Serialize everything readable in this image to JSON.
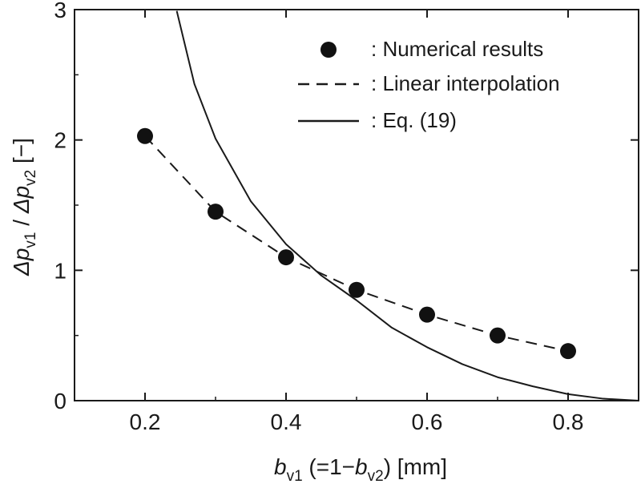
{
  "chart_data": {
    "type": "line",
    "xlabel": "b_v1 (=1−b_v2) [mm]",
    "ylabel": "Δp_v1 / Δp_v2 [−]",
    "xlim": [
      0.1,
      0.9
    ],
    "ylim": [
      0,
      3
    ],
    "x_ticks": [
      "0.2",
      "0.4",
      "0.6",
      "0.8"
    ],
    "y_ticks": [
      "0",
      "1",
      "2",
      "3"
    ],
    "series": [
      {
        "name": "Numerical results",
        "style": "markers",
        "x": [
          0.2,
          0.3,
          0.4,
          0.5,
          0.6,
          0.7,
          0.8
        ],
        "y": [
          2.03,
          1.45,
          1.1,
          0.85,
          0.66,
          0.5,
          0.38
        ]
      },
      {
        "name": "Linear interpolation",
        "style": "dashed",
        "x": [
          0.2,
          0.3,
          0.4,
          0.5,
          0.6,
          0.7,
          0.8
        ],
        "y": [
          2.03,
          1.45,
          1.1,
          0.85,
          0.66,
          0.5,
          0.38
        ]
      },
      {
        "name": "Eq. (19)",
        "style": "solid",
        "x": [
          0.245,
          0.27,
          0.3,
          0.35,
          0.4,
          0.45,
          0.5,
          0.55,
          0.6,
          0.65,
          0.7,
          0.75,
          0.8,
          0.85,
          0.9
        ],
        "y": [
          2.99,
          2.43,
          2.01,
          1.53,
          1.2,
          0.96,
          0.77,
          0.56,
          0.41,
          0.28,
          0.18,
          0.11,
          0.05,
          0.015,
          0.0
        ]
      }
    ],
    "legend": {
      "position": "top-right",
      "entries": [
        ": Numerical results",
        ": Linear interpolation",
        ": Eq. (19)"
      ]
    },
    "x_axis_label": {
      "b": "b",
      "sub1": "v1",
      "mid": " (=1−",
      "b2": "b",
      "sub2": "v2",
      "end": ")  [mm]"
    },
    "y_axis_label": {
      "delta1": "Δp",
      "sub1": "v1",
      "slash": " / ",
      "delta2": "Δp",
      "sub2": "v2",
      "unit": "  [−]"
    }
  }
}
